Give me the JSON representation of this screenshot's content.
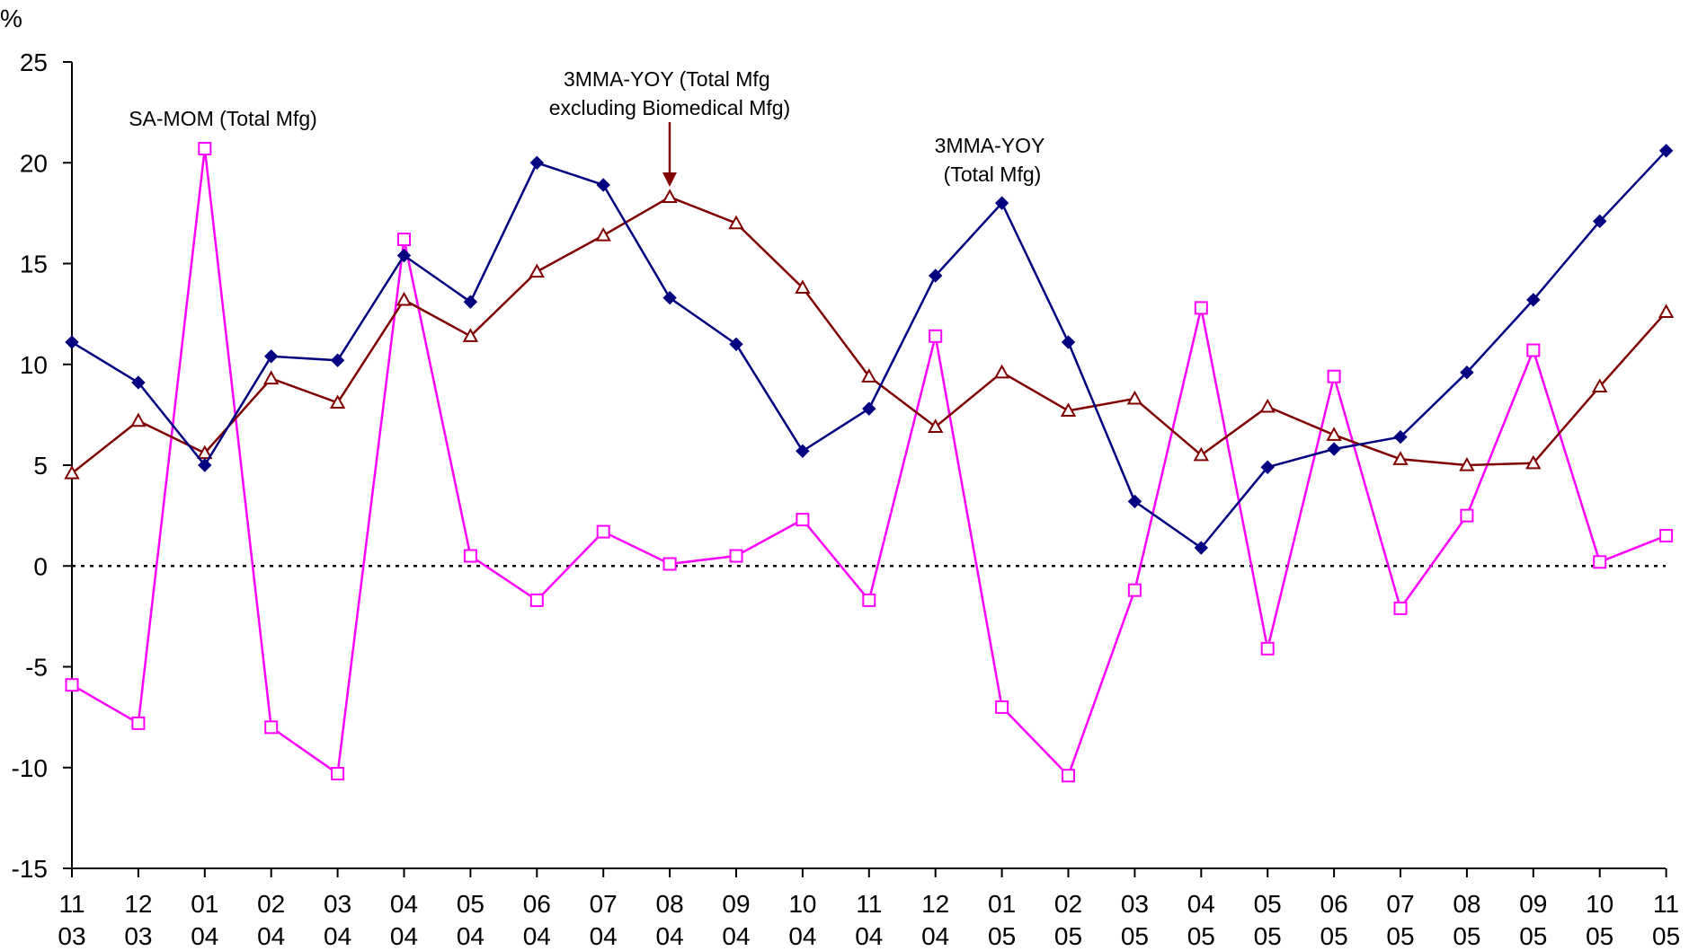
{
  "chart_data": {
    "type": "line",
    "title": "",
    "ylabel": "%",
    "xlabel": "",
    "ylim": [
      -15,
      25
    ],
    "yticks": [
      -15,
      -10,
      -5,
      0,
      5,
      10,
      15,
      20,
      25
    ],
    "grid": false,
    "legend": "none",
    "zero_line": "dotted",
    "categories": [
      {
        "month": "11",
        "year": "03"
      },
      {
        "month": "12",
        "year": "03"
      },
      {
        "month": "01",
        "year": "04"
      },
      {
        "month": "02",
        "year": "04"
      },
      {
        "month": "03",
        "year": "04"
      },
      {
        "month": "04",
        "year": "04"
      },
      {
        "month": "05",
        "year": "04"
      },
      {
        "month": "06",
        "year": "04"
      },
      {
        "month": "07",
        "year": "04"
      },
      {
        "month": "08",
        "year": "04"
      },
      {
        "month": "09",
        "year": "04"
      },
      {
        "month": "10",
        "year": "04"
      },
      {
        "month": "11",
        "year": "04"
      },
      {
        "month": "12",
        "year": "04"
      },
      {
        "month": "01",
        "year": "05"
      },
      {
        "month": "02",
        "year": "05"
      },
      {
        "month": "03",
        "year": "05"
      },
      {
        "month": "04",
        "year": "05"
      },
      {
        "month": "05",
        "year": "05"
      },
      {
        "month": "06",
        "year": "05"
      },
      {
        "month": "07",
        "year": "05"
      },
      {
        "month": "08",
        "year": "05"
      },
      {
        "month": "09",
        "year": "05"
      },
      {
        "month": "10",
        "year": "05"
      },
      {
        "month": "11",
        "year": "05"
      }
    ],
    "series": [
      {
        "key": "total",
        "marker": "diamond",
        "color": "#000080",
        "values": [
          11.1,
          9.1,
          5.0,
          10.4,
          10.2,
          15.4,
          13.1,
          20.0,
          18.9,
          13.3,
          11.0,
          5.7,
          7.8,
          14.4,
          18.0,
          11.1,
          3.2,
          0.9,
          4.9,
          5.8,
          6.4,
          9.6,
          13.2,
          17.1,
          20.6
        ]
      },
      {
        "key": "excl_biomed",
        "marker": "triangle",
        "color": "#800000",
        "values": [
          4.6,
          7.2,
          5.6,
          9.3,
          8.1,
          13.2,
          11.4,
          14.6,
          16.4,
          18.3,
          17.0,
          13.8,
          9.4,
          6.9,
          9.6,
          7.7,
          8.3,
          5.5,
          7.9,
          6.5,
          5.3,
          5.0,
          5.1,
          8.9,
          12.6
        ]
      },
      {
        "key": "sa_mom",
        "marker": "square",
        "color": "#FF00FF",
        "values": [
          -5.9,
          -7.8,
          20.7,
          -8.0,
          -10.3,
          16.2,
          0.5,
          -1.7,
          1.7,
          0.1,
          0.5,
          2.3,
          -1.7,
          11.4,
          -7.0,
          -10.4,
          -1.2,
          12.8,
          -4.1,
          9.4,
          -2.1,
          2.5,
          10.7,
          0.2,
          1.5
        ]
      }
    ],
    "annotations": [
      {
        "key": "sa_mom_label",
        "lines": [
          "SA-MOM (Total Mfg)"
        ]
      },
      {
        "key": "excl_label",
        "lines": [
          "3MMA-YOY (Total Mfg",
          "excluding Biomedical Mfg)"
        ],
        "arrow_color": "#800000"
      },
      {
        "key": "total_label",
        "lines": [
          "3MMA-YOY",
          "(Total Mfg)"
        ]
      }
    ]
  }
}
